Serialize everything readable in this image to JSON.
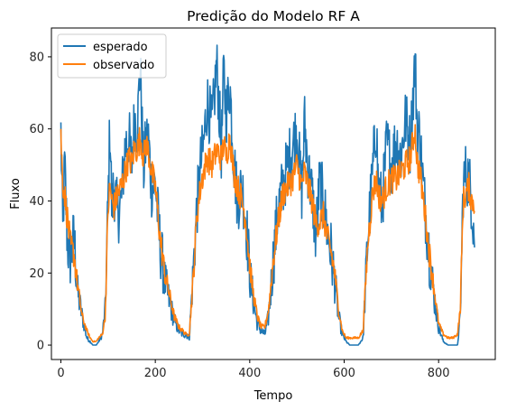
{
  "colors": {
    "esperado": "#1f77b4",
    "observado": "#ff7f0e",
    "axis": "#000000",
    "background": "#ffffff"
  },
  "chart_data": {
    "type": "line",
    "title": "Predição do Modelo RF A",
    "xlabel": "Tempo",
    "ylabel": "Fluxo",
    "xlim": [
      -20,
      920
    ],
    "ylim": [
      -4,
      88
    ],
    "xticks": [
      0,
      200,
      400,
      600,
      800
    ],
    "yticks": [
      0,
      20,
      40,
      60,
      80
    ],
    "grid": false,
    "legend": "upper-left",
    "n_points": 880,
    "series": [
      {
        "name": "esperado",
        "color": "#1f77b4",
        "x": [
          0,
          4,
          8,
          14,
          20,
          28,
          35,
          45,
          55,
          62,
          68,
          75,
          80,
          88,
          94,
          100,
          104,
          108,
          112,
          120,
          128,
          136,
          144,
          150,
          156,
          162,
          168,
          175,
          180,
          185,
          192,
          200,
          210,
          220,
          230,
          240,
          250,
          258,
          265,
          272,
          280,
          288,
          296,
          302,
          310,
          320,
          330,
          340,
          345,
          350,
          358,
          366,
          374,
          384,
          392,
          400,
          408,
          416,
          424,
          432,
          440,
          450,
          460,
          470,
          480,
          490,
          500,
          510,
          516,
          524,
          532,
          540,
          548,
          556,
          564,
          572,
          580,
          588,
          596,
          604,
          612,
          620,
          630,
          640,
          650,
          660,
          668,
          672,
          680,
          690,
          700,
          710,
          720,
          730,
          740,
          750,
          755,
          760,
          770,
          780,
          790,
          800,
          810,
          820,
          830,
          840,
          846,
          852,
          858,
          864,
          870,
          876
        ],
        "y": [
          59,
          31,
          50,
          28,
          24,
          30,
          15,
          8,
          2,
          1,
          0,
          0,
          1,
          3,
          10,
          40,
          62,
          37,
          45,
          36,
          40,
          55,
          58,
          50,
          63,
          60,
          78,
          48,
          56,
          58,
          44,
          45,
          28,
          18,
          12,
          7,
          4,
          3,
          3,
          2,
          20,
          38,
          50,
          55,
          68,
          60,
          78,
          54,
          76,
          64,
          72,
          52,
          40,
          44,
          35,
          20,
          12,
          6,
          4,
          3,
          8,
          24,
          38,
          44,
          50,
          55,
          60,
          42,
          62,
          48,
          42,
          30,
          45,
          40,
          32,
          26,
          18,
          8,
          3,
          1,
          0,
          0,
          0,
          2,
          30,
          47,
          62,
          45,
          38,
          56,
          50,
          57,
          52,
          63,
          55,
          79,
          60,
          58,
          40,
          26,
          14,
          5,
          1,
          0,
          0,
          0,
          8,
          44,
          48,
          46,
          40,
          30
        ],
        "labels_pts": []
      },
      {
        "name": "observado",
        "color": "#ff7f0e",
        "x": [
          0,
          4,
          8,
          14,
          20,
          28,
          35,
          45,
          55,
          62,
          68,
          75,
          80,
          88,
          94,
          100,
          104,
          108,
          112,
          120,
          128,
          136,
          144,
          150,
          156,
          162,
          168,
          175,
          180,
          185,
          192,
          200,
          210,
          220,
          230,
          240,
          250,
          258,
          265,
          272,
          280,
          288,
          296,
          302,
          310,
          320,
          330,
          340,
          345,
          350,
          358,
          366,
          374,
          384,
          392,
          400,
          408,
          416,
          424,
          432,
          440,
          450,
          460,
          470,
          480,
          490,
          500,
          510,
          516,
          524,
          532,
          540,
          548,
          556,
          564,
          572,
          580,
          588,
          596,
          604,
          612,
          620,
          630,
          640,
          650,
          660,
          668,
          672,
          680,
          690,
          700,
          710,
          720,
          730,
          740,
          750,
          755,
          760,
          770,
          780,
          790,
          800,
          810,
          820,
          830,
          840,
          846,
          852,
          858,
          864,
          870,
          876
        ],
        "y": [
          58,
          45,
          42,
          35,
          28,
          25,
          17,
          8,
          4,
          2,
          1,
          1,
          2,
          3,
          8,
          38,
          44,
          40,
          38,
          42,
          44,
          48,
          52,
          50,
          55,
          54,
          58,
          52,
          56,
          54,
          48,
          44,
          30,
          20,
          14,
          8,
          5,
          4,
          3,
          3,
          18,
          36,
          44,
          48,
          52,
          50,
          54,
          52,
          56,
          52,
          58,
          48,
          44,
          40,
          34,
          22,
          14,
          8,
          5,
          5,
          10,
          24,
          34,
          42,
          44,
          46,
          50,
          44,
          48,
          44,
          40,
          34,
          34,
          36,
          30,
          26,
          20,
          10,
          4,
          2,
          2,
          2,
          2,
          4,
          28,
          42,
          46,
          42,
          40,
          44,
          46,
          46,
          48,
          50,
          52,
          60,
          50,
          48,
          38,
          26,
          16,
          6,
          3,
          2,
          2,
          3,
          10,
          40,
          42,
          44,
          40,
          40
        ],
        "labels_pts": []
      }
    ]
  }
}
